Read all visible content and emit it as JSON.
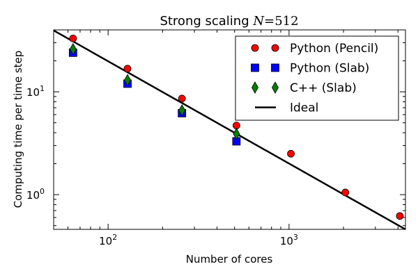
{
  "chart_data": {
    "type": "scatter",
    "title_prefix": "Strong scaling ",
    "title_math": "N",
    "title_suffix": "=512",
    "xlabel": "Number of cores",
    "ylabel": "Computing time per time step",
    "xscale": "log",
    "yscale": "log",
    "xlim": [
      50,
      4400
    ],
    "ylim": [
      0.46,
      40
    ],
    "x_ticks": [
      {
        "value": 100,
        "base": "10",
        "exp": "2"
      },
      {
        "value": 1000,
        "base": "10",
        "exp": "3"
      }
    ],
    "y_ticks": [
      {
        "value": 1,
        "base": "10",
        "exp": "0"
      },
      {
        "value": 10,
        "base": "10",
        "exp": "1"
      }
    ],
    "series": [
      {
        "name": "Python (Pencil)",
        "marker": "circle",
        "color": "#ff0000",
        "x": [
          64,
          128,
          256,
          512,
          1024,
          2048,
          4096
        ],
        "y": [
          33,
          16.8,
          8.6,
          4.7,
          2.5,
          1.05,
          0.62
        ]
      },
      {
        "name": "Python (Slab)",
        "marker": "square",
        "color": "#0000ff",
        "x": [
          64,
          128,
          256,
          512
        ],
        "y": [
          24,
          12,
          6.2,
          3.3
        ]
      },
      {
        "name": "C++ (Slab)",
        "marker": "diamond",
        "color": "#008000",
        "x": [
          64,
          128,
          256,
          512
        ],
        "y": [
          26,
          13,
          6.6,
          3.9
        ]
      },
      {
        "name": "Ideal",
        "marker": "line",
        "color": "#000000",
        "x": [
          50,
          4400
        ],
        "y": [
          39.5,
          0.46
        ]
      }
    ],
    "legend_position": "top-right"
  }
}
